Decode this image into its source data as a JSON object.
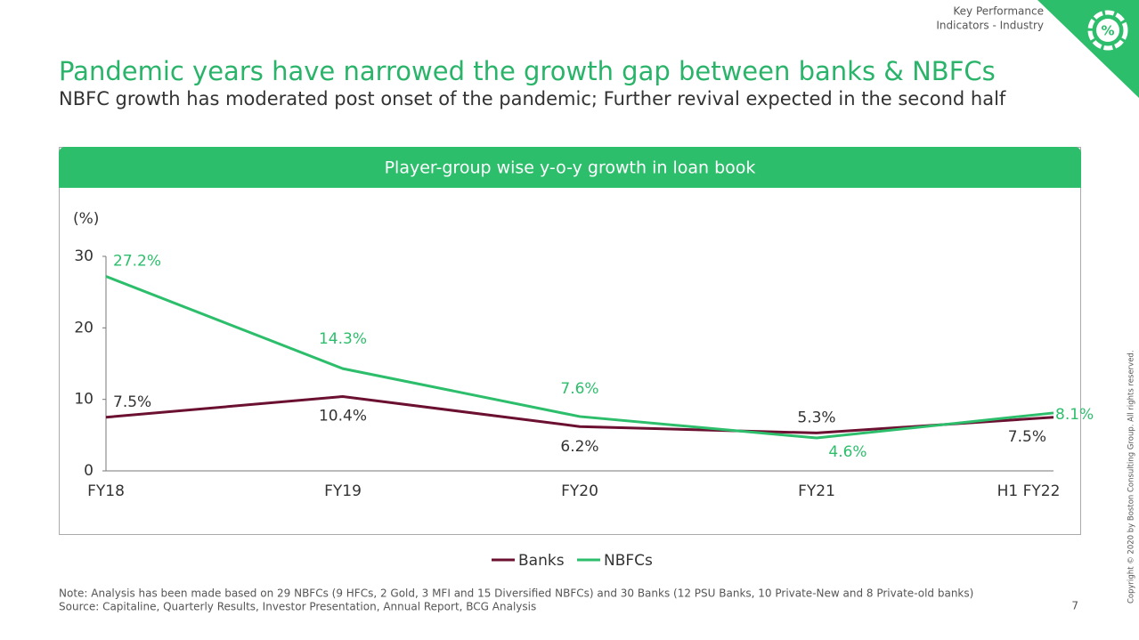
{
  "header": {
    "section": [
      "Key Performance",
      "Indicators - Industry"
    ],
    "icon": "%"
  },
  "title": "Pandemic years have narrowed the growth gap between banks & NBFCs",
  "subtitle": "NBFC growth has moderated post onset of the pandemic; Further revival expected in the second half",
  "chart_data": {
    "type": "line",
    "title": "Player-group wise y-o-y growth in loan book",
    "y_label": "(%)",
    "categories": [
      "FY18",
      "FY19",
      "FY20",
      "FY21",
      "H1 FY22"
    ],
    "series": [
      {
        "name": "Banks",
        "color": "#6b1030",
        "values": [
          7.5,
          10.4,
          6.2,
          5.3,
          7.5
        ],
        "value_labels": [
          "7.5%",
          "10.4%",
          "6.2%",
          "5.3%",
          "7.5%"
        ]
      },
      {
        "name": "NBFCs",
        "color": "#2dbe6c",
        "values": [
          27.2,
          14.3,
          7.6,
          4.6,
          8.1
        ],
        "value_labels": [
          "27.2%",
          "14.3%",
          "7.6%",
          "4.6%",
          "8.1%"
        ]
      }
    ],
    "ylim": [
      0,
      30
    ],
    "yticks": [
      0,
      10,
      20,
      30
    ],
    "grid": false,
    "legend": "bottom"
  },
  "footer": {
    "note": "Note: Analysis has been made based on 29 NBFCs (9 HFCs, 2 Gold, 3 MFI and 15 Diversified NBFCs) and 30 Banks (12 PSU Banks, 10 Private-New and 8 Private-old banks)",
    "source": "Source: Capitaline, Quarterly Results, Investor Presentation, Annual Report, BCG Analysis",
    "page": "7",
    "copyright": "Copyright © 2020 by Boston Consulting Group. All rights reserved."
  }
}
